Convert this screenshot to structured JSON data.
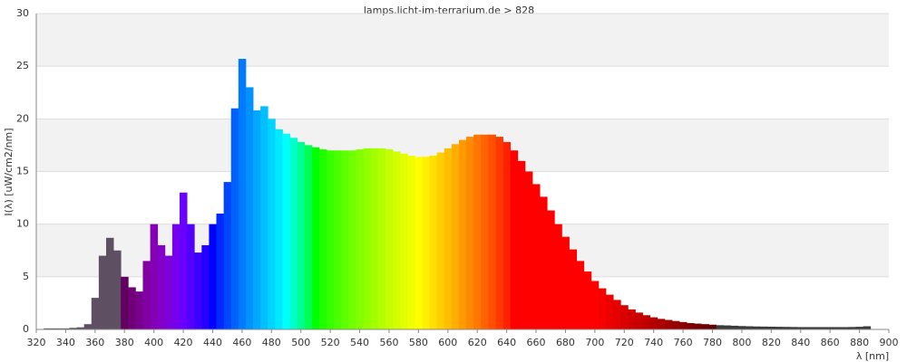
{
  "chart_data": {
    "type": "spectrum",
    "title": "lamps.licht-im-terrarium.de > 828",
    "x_label": "λ [nm]",
    "y_label": "I(λ)  [uW/cm2/nm]",
    "x": [
      325,
      330,
      335,
      340,
      345,
      350,
      355,
      360,
      365,
      370,
      375,
      380,
      385,
      390,
      395,
      400,
      405,
      410,
      415,
      420,
      425,
      430,
      435,
      440,
      445,
      450,
      455,
      460,
      465,
      470,
      475,
      480,
      485,
      490,
      495,
      500,
      505,
      510,
      515,
      520,
      525,
      530,
      535,
      540,
      545,
      550,
      555,
      560,
      565,
      570,
      575,
      580,
      585,
      590,
      595,
      600,
      605,
      610,
      615,
      620,
      625,
      630,
      635,
      640,
      645,
      650,
      655,
      660,
      665,
      670,
      675,
      680,
      685,
      690,
      695,
      700,
      705,
      710,
      715,
      720,
      725,
      730,
      735,
      740,
      745,
      750,
      755,
      760,
      765,
      770,
      775,
      780,
      785,
      790,
      795,
      800,
      805,
      810,
      815,
      820,
      825,
      830,
      835,
      840,
      845,
      850,
      855,
      860,
      865,
      870,
      875,
      880,
      885
    ],
    "values": [
      0.1,
      0.1,
      0.1,
      0.1,
      0.15,
      0.2,
      0.5,
      3,
      7,
      8.7,
      7.5,
      5,
      4,
      3.6,
      6.5,
      10,
      8,
      7,
      10,
      13,
      10,
      7.3,
      8,
      10,
      11,
      14,
      21,
      25.7,
      23,
      20.8,
      21.2,
      20,
      19,
      18.6,
      18.2,
      17.8,
      17.5,
      17.3,
      17.1,
      17,
      17,
      17,
      17,
      17.1,
      17.2,
      17.2,
      17.2,
      17.1,
      16.9,
      16.7,
      16.5,
      16.4,
      16.4,
      16.5,
      16.8,
      17.2,
      17.6,
      18,
      18.3,
      18.5,
      18.5,
      18.5,
      18.3,
      17.8,
      17,
      16,
      15,
      13.8,
      12.6,
      11.3,
      10,
      8.8,
      7.6,
      6.5,
      5.5,
      4.6,
      3.9,
      3.3,
      2.8,
      2.3,
      1.9,
      1.6,
      1.35,
      1.15,
      1,
      0.9,
      0.8,
      0.7,
      0.6,
      0.55,
      0.5,
      0.45,
      0.4,
      0.38,
      0.35,
      0.32,
      0.3,
      0.28,
      0.27,
      0.26,
      0.25,
      0.24,
      0.23,
      0.22,
      0.22,
      0.22,
      0.22,
      0.22,
      0.22,
      0.22,
      0.23,
      0.25,
      0.3
    ],
    "uv_color": "#5e5062",
    "ir_color": "#3a3a3a",
    "xlim": [
      320,
      900
    ],
    "xticks": [
      320,
      340,
      360,
      380,
      400,
      420,
      440,
      460,
      480,
      500,
      520,
      540,
      560,
      580,
      600,
      620,
      640,
      660,
      680,
      700,
      720,
      740,
      760,
      780,
      800,
      820,
      840,
      860,
      880,
      900
    ],
    "ylim": [
      0,
      30
    ],
    "yticks": [
      0,
      5,
      10,
      15,
      20,
      25,
      30
    ],
    "grid": true,
    "band_color": "#f2f2f2"
  }
}
